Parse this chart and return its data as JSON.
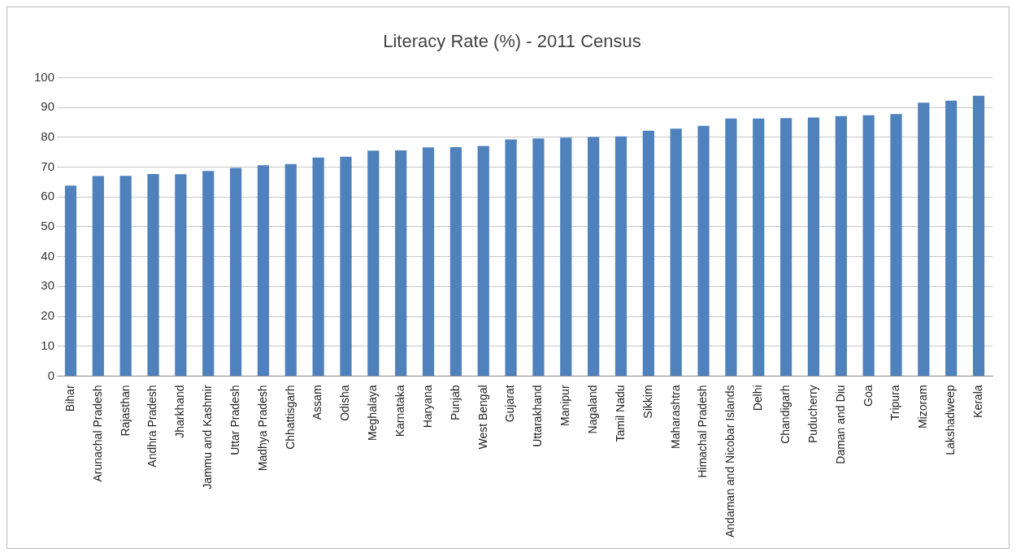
{
  "chart_data": {
    "type": "bar",
    "title": "Literacy Rate (%) - 2011 Census",
    "categories": [
      "Bihar",
      "Arunachal Pradesh",
      "Rajasthan",
      "Andhra Pradesh",
      "Jharkhand",
      "Jammu and Kashmir",
      "Uttar Pradesh",
      "Madhya Pradesh",
      "Chhattisgarh",
      "Assam",
      "Odisha",
      "Meghalaya",
      "Karnataka",
      "Haryana",
      "Punjab",
      "West Bengal",
      "Gujarat",
      "Uttarakhand",
      "Manipur",
      "Nagaland",
      "Tamil Nadu",
      "Sikkim",
      "Maharashtra",
      "Himachal Pradesh",
      "Andaman and Nicobar Islands",
      "Delhi",
      "Chandigarh",
      "Puducherry",
      "Daman and Diu",
      "Goa",
      "Tripura",
      "Mizoram",
      "Lakshadweep",
      "Kerala"
    ],
    "values": [
      63.8,
      67.0,
      67.1,
      67.7,
      67.6,
      68.7,
      69.7,
      70.6,
      71.0,
      73.2,
      73.5,
      75.5,
      75.6,
      76.6,
      76.7,
      77.1,
      79.3,
      79.6,
      79.9,
      80.1,
      80.3,
      82.2,
      82.9,
      83.8,
      86.3,
      86.3,
      86.4,
      86.6,
      87.1,
      87.4,
      87.8,
      91.6,
      92.3,
      93.9
    ],
    "color": "#4f81bd",
    "ylim": [
      0,
      100
    ],
    "yticks": [
      0,
      10,
      20,
      30,
      40,
      50,
      60,
      70,
      80,
      90,
      100
    ],
    "grid": "y",
    "legend": false
  }
}
